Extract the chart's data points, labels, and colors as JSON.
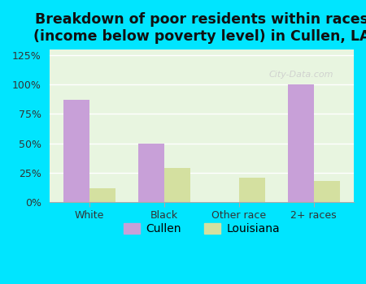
{
  "title": "Breakdown of poor residents within races\n(income below poverty level) in Cullen, LA",
  "categories": [
    "White",
    "Black",
    "Other race",
    "2+ races"
  ],
  "cullen_values": [
    87,
    50,
    0,
    100
  ],
  "louisiana_values": [
    12,
    29,
    21,
    18
  ],
  "cullen_color": "#c8a0d8",
  "louisiana_color": "#d4e0a0",
  "bg_outer": "#00e5ff",
  "bg_plot": "#e8f5e0",
  "ylim": [
    0,
    130
  ],
  "yticks": [
    0,
    25,
    50,
    75,
    100,
    125
  ],
  "yticklabels": [
    "0%",
    "25%",
    "50%",
    "75%",
    "100%",
    "125%"
  ],
  "bar_width": 0.35,
  "title_fontsize": 12.5,
  "legend_labels": [
    "Cullen",
    "Louisiana"
  ]
}
